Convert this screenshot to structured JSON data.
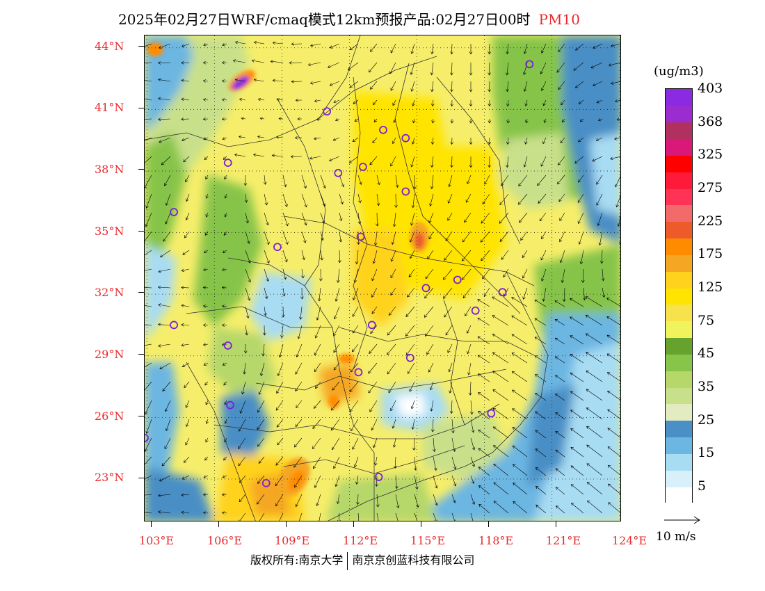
{
  "title": {
    "main": "2025年02月27日WRF/cmaq模式12km预报产品:02月27日00时",
    "variable": "PM10"
  },
  "axes": {
    "lat_labels": [
      "44°N",
      "41°N",
      "38°N",
      "35°N",
      "32°N",
      "29°N",
      "26°N",
      "23°N"
    ],
    "lon_labels": [
      "103°E",
      "106°E",
      "109°E",
      "112°E",
      "115°E",
      "118°E",
      "121°E",
      "124°E"
    ],
    "lat_values": [
      44,
      41,
      38,
      35,
      32,
      29,
      26,
      23
    ],
    "lon_values": [
      103,
      106,
      109,
      112,
      115,
      118,
      121,
      124
    ],
    "lat_range": [
      20.9,
      44.6
    ],
    "lon_range": [
      102.9,
      124.1
    ]
  },
  "legend": {
    "unit": "(ug/m3)",
    "bins": [
      {
        "color": "#ffffff"
      },
      {
        "color": "#d8f0fa"
      },
      {
        "color": "#a8dcf3"
      },
      {
        "color": "#6cb6e2"
      },
      {
        "color": "#4a8fc6"
      },
      {
        "color": "#e2ecc0"
      },
      {
        "color": "#c9e08a"
      },
      {
        "color": "#b6d76a"
      },
      {
        "color": "#86c44a"
      },
      {
        "color": "#66a32e"
      },
      {
        "color": "#f1f35c"
      },
      {
        "color": "#f7e24b"
      },
      {
        "color": "#ffe400"
      },
      {
        "color": "#ffd21e"
      },
      {
        "color": "#f5a623"
      },
      {
        "color": "#ff8c00"
      },
      {
        "color": "#ee5a2a"
      },
      {
        "color": "#f36a6a"
      },
      {
        "color": "#ff3355"
      },
      {
        "color": "#ff1a3a"
      },
      {
        "color": "#ff0000"
      },
      {
        "color": "#d9187a"
      },
      {
        "color": "#b0305f"
      },
      {
        "color": "#9b2ccf"
      },
      {
        "color": "#8a2be2"
      }
    ],
    "labels": [
      "5",
      "15",
      "25",
      "35",
      "45",
      "75",
      "125",
      "175",
      "225",
      "275",
      "325",
      "368",
      "403"
    ]
  },
  "wind_reference": {
    "label": "10 m/s"
  },
  "copyright": {
    "left": "版权所有:南京大学",
    "right": "南京京创蓝科技有限公司"
  },
  "city_markers": [
    {
      "lon": 120.0,
      "lat": 43.2
    },
    {
      "lon": 111.0,
      "lat": 40.9
    },
    {
      "lon": 113.5,
      "lat": 40.0
    },
    {
      "lon": 114.5,
      "lat": 39.6
    },
    {
      "lon": 106.6,
      "lat": 38.4
    },
    {
      "lon": 111.5,
      "lat": 37.9
    },
    {
      "lon": 112.6,
      "lat": 38.2
    },
    {
      "lon": 114.5,
      "lat": 37.0
    },
    {
      "lon": 104.2,
      "lat": 36.0
    },
    {
      "lon": 112.5,
      "lat": 34.8
    },
    {
      "lon": 108.8,
      "lat": 34.3
    },
    {
      "lon": 116.8,
      "lat": 32.7
    },
    {
      "lon": 115.4,
      "lat": 32.3
    },
    {
      "lon": 118.8,
      "lat": 32.1
    },
    {
      "lon": 117.6,
      "lat": 31.2
    },
    {
      "lon": 104.2,
      "lat": 30.5
    },
    {
      "lon": 113.0,
      "lat": 30.5
    },
    {
      "lon": 106.6,
      "lat": 29.5
    },
    {
      "lon": 114.7,
      "lat": 28.9
    },
    {
      "lon": 112.4,
      "lat": 28.2
    },
    {
      "lon": 118.3,
      "lat": 26.2
    },
    {
      "lon": 106.7,
      "lat": 26.6
    },
    {
      "lon": 102.9,
      "lat": 25.0
    },
    {
      "lon": 113.3,
      "lat": 23.1
    },
    {
      "lon": 108.3,
      "lat": 22.8
    }
  ]
}
